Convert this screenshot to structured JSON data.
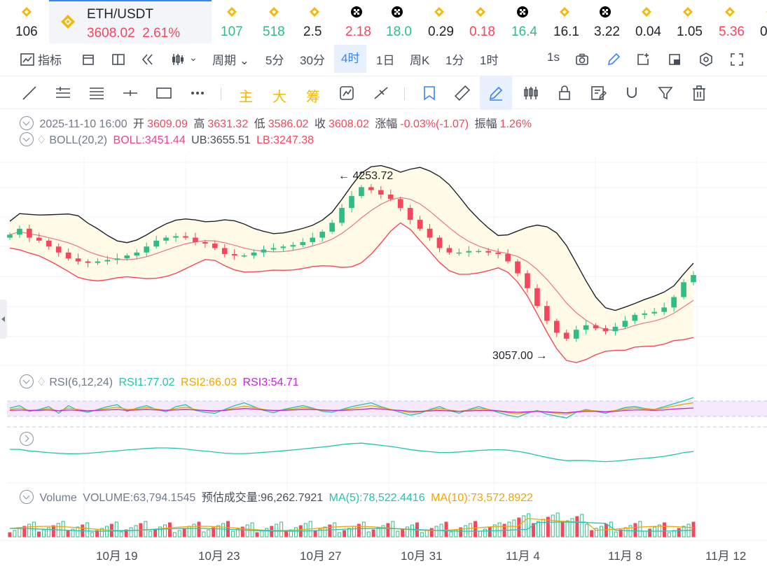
{
  "tickers": [
    {
      "value": "106",
      "icon": "bnb-icon",
      "dir": "flat"
    },
    {
      "value": "107",
      "icon": "bnb-icon",
      "dir": "up"
    },
    {
      "value": "518",
      "icon": "bnb-icon",
      "dir": "up"
    },
    {
      "value": "2.5",
      "icon": "bnb-icon",
      "dir": "flat"
    },
    {
      "value": "2.18",
      "icon": "okx-icon",
      "dir": "down"
    },
    {
      "value": "18.0",
      "icon": "okx-icon",
      "dir": "up"
    },
    {
      "value": "0.29",
      "icon": "bnb-icon",
      "dir": "flat"
    },
    {
      "value": "0.18",
      "icon": "bnb-icon",
      "dir": "down"
    },
    {
      "value": "16.4",
      "icon": "okx-icon",
      "dir": "up"
    },
    {
      "value": "16.1",
      "icon": "bnb-icon",
      "dir": "flat"
    },
    {
      "value": "3.22",
      "icon": "okx-icon",
      "dir": "flat"
    },
    {
      "value": "0.04",
      "icon": "bnb-icon",
      "dir": "flat"
    },
    {
      "value": "1.05",
      "icon": "bnb-icon",
      "dir": "flat"
    },
    {
      "value": "5.36",
      "icon": "bnb-icon",
      "dir": "down"
    },
    {
      "value": "0",
      "icon": "bnb-icon",
      "dir": "flat"
    }
  ],
  "active_ticker": {
    "name": "ETH/USDT",
    "price": "3608.02",
    "change": "2.61%",
    "icon": "bnb-icon"
  },
  "toolbar1": {
    "indicator": "指标",
    "period": "周期",
    "intervals": [
      "5分",
      "30分",
      "4时",
      "1日",
      "周K",
      "1分",
      "1时"
    ],
    "active_interval": "4时",
    "refresh": "1s"
  },
  "toolbar2": {
    "text_tools": [
      "主",
      "大",
      "筹"
    ]
  },
  "ohlc": {
    "date": "2025-11-10 16:00",
    "open_label": "开",
    "open": "3609.09",
    "high_label": "高",
    "high": "3631.32",
    "low_label": "低",
    "low": "3586.02",
    "close_label": "收",
    "close": "3608.02",
    "change_label": "涨幅",
    "change": "-0.03%(-1.07)",
    "amp_label": "振幅",
    "amp": "1.26%"
  },
  "boll": {
    "name": "BOLL(20,2)",
    "mid": "BOLL:3451.44",
    "ub": "UB:3655.51",
    "lb": "LB:3247.38"
  },
  "annotations": {
    "high": "4253.72",
    "low": "3057.00"
  },
  "rsi": {
    "name": "RSI(6,12,24)",
    "r1": "RSI1:77.02",
    "r2": "RSI2:66.03",
    "r3": "RSI3:54.71"
  },
  "volume": {
    "name": "Volume",
    "vol": "VOLUME:63,794.1545",
    "est": "预估成交量:96,262.7921",
    "ma5": "MA(5):78,522.4416",
    "ma10": "MA(10):73,572.8922"
  },
  "x_labels": [
    "10月 19",
    "10月 23",
    "10月 27",
    "10月 31",
    "11月 4",
    "11月 8",
    "11月 12"
  ],
  "colors": {
    "up": "#2ebd85",
    "down": "#f6465d",
    "accent": "#3b82f6",
    "boll_fill": "#fffbe6"
  },
  "chart_data": {
    "type": "candlestick",
    "price_range": [
      3057.0,
      4253.72
    ],
    "close_series": [
      3880,
      3920,
      3860,
      3840,
      3800,
      3760,
      3720,
      3700,
      3690,
      3700,
      3710,
      3720,
      3740,
      3760,
      3800,
      3840,
      3860,
      3870,
      3860,
      3830,
      3820,
      3790,
      3750,
      3740,
      3740,
      3760,
      3780,
      3790,
      3800,
      3810,
      3830,
      3860,
      3900,
      3960,
      4060,
      4140,
      4200,
      4180,
      4150,
      4120,
      4060,
      3980,
      3920,
      3860,
      3790,
      3760,
      3760,
      3770,
      3770,
      3760,
      3750,
      3700,
      3620,
      3520,
      3400,
      3300,
      3220,
      3180,
      3240,
      3270,
      3250,
      3230,
      3260,
      3300,
      3340,
      3350,
      3360,
      3390,
      3460,
      3560,
      3608
    ],
    "rsi_series": [
      {
        "name": "RSI1",
        "color": "#20c5b0",
        "values": [
          55,
          60,
          48,
          52,
          58,
          44,
          60,
          50,
          46,
          52,
          58,
          62,
          48,
          55,
          60,
          52,
          47,
          58,
          62,
          50,
          46,
          44,
          52,
          60,
          66,
          58,
          50,
          45,
          52,
          56,
          60,
          55,
          48,
          46,
          52,
          58,
          62,
          66,
          58,
          52,
          46,
          40,
          44,
          52,
          58,
          50,
          44,
          52,
          58,
          52,
          46,
          40,
          36,
          44,
          50,
          42,
          38,
          34,
          46,
          52,
          48,
          44,
          50,
          56,
          58,
          54,
          52,
          58,
          64,
          70,
          77
        ]
      },
      {
        "name": "RSI2",
        "color": "#f0a500",
        "values": [
          52,
          55,
          50,
          51,
          54,
          49,
          55,
          52,
          49,
          51,
          54,
          57,
          52,
          53,
          56,
          53,
          50,
          54,
          57,
          52,
          49,
          48,
          51,
          55,
          59,
          56,
          52,
          49,
          51,
          53,
          56,
          54,
          50,
          49,
          51,
          54,
          57,
          60,
          56,
          52,
          49,
          45,
          47,
          51,
          54,
          51,
          48,
          51,
          54,
          52,
          49,
          45,
          43,
          46,
          49,
          46,
          44,
          42,
          47,
          50,
          49,
          47,
          50,
          53,
          55,
          53,
          52,
          55,
          59,
          63,
          66
        ]
      },
      {
        "name": "RSI3",
        "color": "#c026d3",
        "values": [
          50,
          51,
          50,
          50,
          51,
          49,
          51,
          50,
          49,
          50,
          51,
          52,
          50,
          51,
          52,
          51,
          50,
          51,
          52,
          51,
          50,
          49,
          50,
          52,
          54,
          53,
          51,
          50,
          50,
          51,
          52,
          52,
          51,
          50,
          50,
          51,
          52,
          54,
          53,
          51,
          50,
          48,
          48,
          49,
          50,
          49,
          48,
          49,
          50,
          50,
          49,
          47,
          46,
          47,
          48,
          47,
          46,
          45,
          47,
          48,
          48,
          47,
          48,
          50,
          51,
          51,
          50,
          51,
          53,
          54,
          55
        ]
      }
    ],
    "volume_ma5_color": "#f0a500",
    "volume_ma10_color": "#20c5b0"
  }
}
